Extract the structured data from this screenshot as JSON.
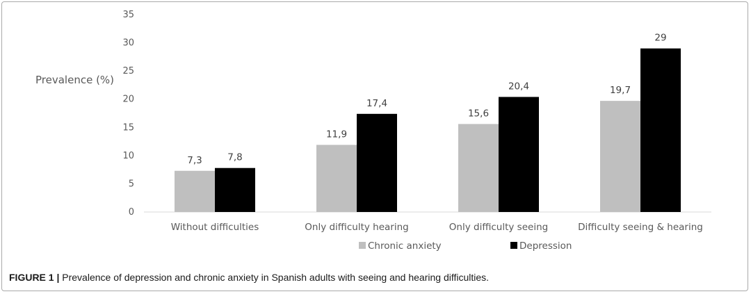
{
  "chart_data": {
    "type": "bar",
    "title": "",
    "xlabel": "",
    "ylabel": "Prevalence (%)",
    "ylim": [
      0,
      35
    ],
    "yticks": [
      "0",
      "5",
      "10",
      "15",
      "20",
      "25",
      "30",
      "35"
    ],
    "grid": false,
    "legend_position": "bottom",
    "categories": [
      "Without difficulties",
      "Only difficulty hearing",
      "Only difficulty seeing",
      "Difficulty seeing & hearing"
    ],
    "series": [
      {
        "name": "Chronic anxiety",
        "color": "#bfbfbf",
        "values": [
          7.3,
          11.9,
          15.6,
          19.7
        ],
        "labels": [
          "7,3",
          "11,9",
          "15,6",
          "19,7"
        ]
      },
      {
        "name": "Depression",
        "color": "#000000",
        "values": [
          7.8,
          17.4,
          20.4,
          29
        ],
        "labels": [
          "7,8",
          "17,4",
          "20,4",
          "29"
        ]
      }
    ]
  },
  "caption": {
    "lead": "FIGURE 1 |",
    "text": " Prevalence of depression and chronic anxiety in Spanish adults with seeing and hearing difficulties."
  }
}
